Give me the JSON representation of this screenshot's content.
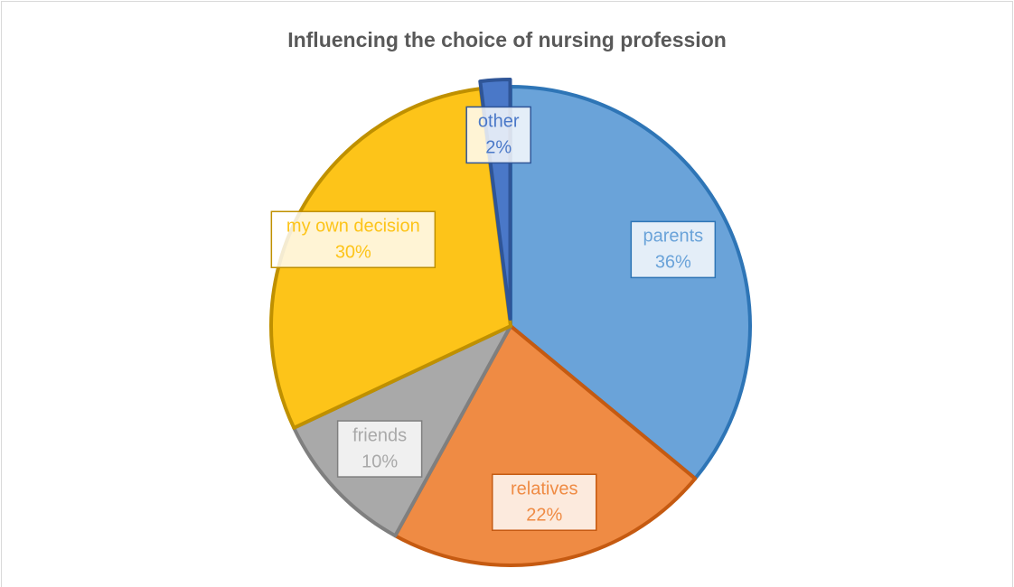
{
  "chart_data": {
    "type": "pie",
    "title": "Influencing the choice of nursing profession",
    "categories": [
      "parents",
      "relatives",
      "friends",
      "my own decision",
      "other"
    ],
    "values": [
      36,
      22,
      10,
      30,
      2
    ],
    "value_labels": [
      "36%",
      "22%",
      "10%",
      "30%",
      "2%"
    ],
    "colors": [
      "#6aa3d9",
      "#ef8b44",
      "#a9a9a9",
      "#fdc419",
      "#4a78c8"
    ],
    "edge_colors": [
      "#2e75b6",
      "#c55a11",
      "#7f7f7f",
      "#bf9000",
      "#2f5597"
    ]
  }
}
